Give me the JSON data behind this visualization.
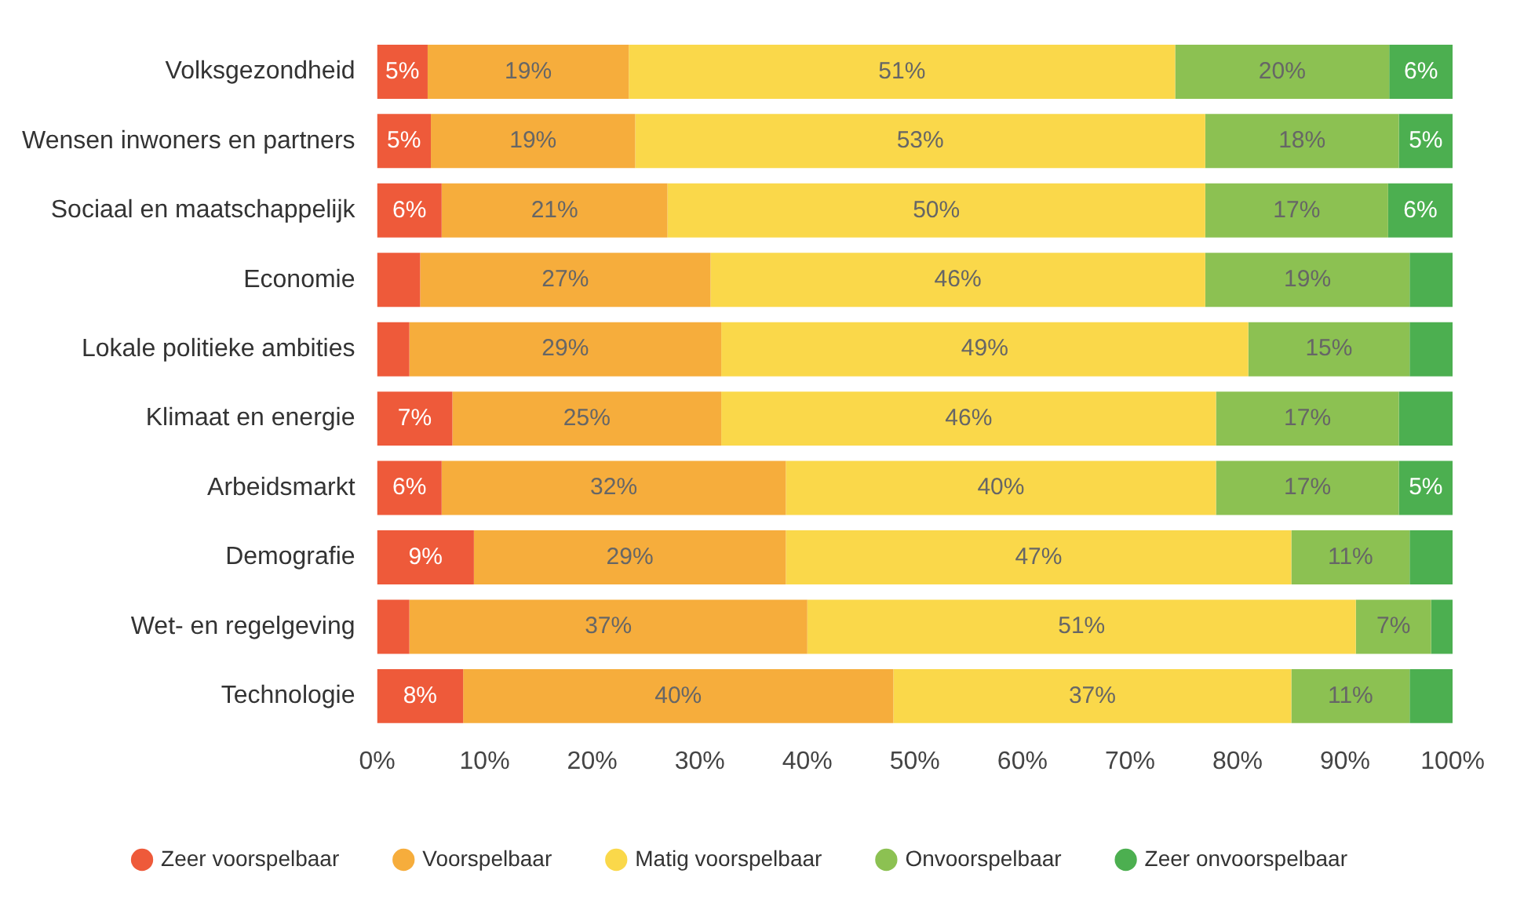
{
  "chart_data": {
    "type": "bar",
    "orientation": "horizontal",
    "stacked": true,
    "legend": "bottom",
    "categories": [
      "Volksgezondheid",
      "Wensen inwoners en partners",
      "Sociaal en maatschappelijk",
      "Economie",
      "Lokale politieke ambities",
      "Klimaat en energie",
      "Arbeidsmarkt",
      "Demografie",
      "Wet- en regelgeving",
      "Technologie"
    ],
    "xlim": [
      0,
      100
    ],
    "xticks": [
      {
        "value": 0,
        "label": "0%"
      },
      {
        "value": 10,
        "label": "10%"
      },
      {
        "value": 20,
        "label": "20%"
      },
      {
        "value": 30,
        "label": "30%"
      },
      {
        "value": 40,
        "label": "40%"
      },
      {
        "value": 50,
        "label": "50%"
      },
      {
        "value": 60,
        "label": "60%"
      },
      {
        "value": 70,
        "label": "70%"
      },
      {
        "value": 80,
        "label": "80%"
      },
      {
        "value": 90,
        "label": "90%"
      },
      {
        "value": 100,
        "label": "100%"
      }
    ],
    "series": [
      {
        "name": "Zeer voorspelbaar",
        "color": "#ee5a3a",
        "values": [
          4.7,
          5,
          6,
          4,
          3,
          7,
          6,
          9,
          3,
          8
        ],
        "value_labels": [
          "5%",
          "5%",
          "6%",
          null,
          null,
          "7%",
          "6%",
          "9%",
          null,
          "8%"
        ]
      },
      {
        "name": "Voorspelbaar",
        "color": "#f6ad3c",
        "values": [
          18.7,
          19,
          21,
          27,
          29,
          25,
          32,
          29,
          37,
          40
        ],
        "value_labels": [
          "19%",
          "19%",
          "21%",
          "27%",
          "29%",
          "25%",
          "32%",
          "29%",
          "37%",
          "40%"
        ]
      },
      {
        "name": "Matig voorspelbaar",
        "color": "#fad84a",
        "values": [
          50.8,
          53,
          50,
          46,
          49,
          46,
          40,
          47,
          51,
          37
        ],
        "value_labels": [
          "51%",
          "53%",
          "50%",
          "46%",
          "49%",
          "46%",
          "40%",
          "47%",
          "51%",
          "37%"
        ]
      },
      {
        "name": "Onvoorspelbaar",
        "color": "#8cc152",
        "values": [
          19.9,
          18,
          17,
          19,
          15,
          17,
          17,
          11,
          7,
          11
        ],
        "value_labels": [
          "20%",
          "18%",
          "17%",
          "19%",
          "15%",
          "17%",
          "17%",
          "11%",
          "7%",
          "11%"
        ]
      },
      {
        "name": "Zeer onvoorspelbaar",
        "color": "#4caf50",
        "values": [
          5.9,
          5,
          6,
          4,
          4,
          5,
          5,
          4,
          2,
          4
        ],
        "value_labels": [
          "6%",
          "5%",
          "6%",
          null,
          null,
          null,
          "5%",
          null,
          null,
          null
        ]
      }
    ]
  }
}
